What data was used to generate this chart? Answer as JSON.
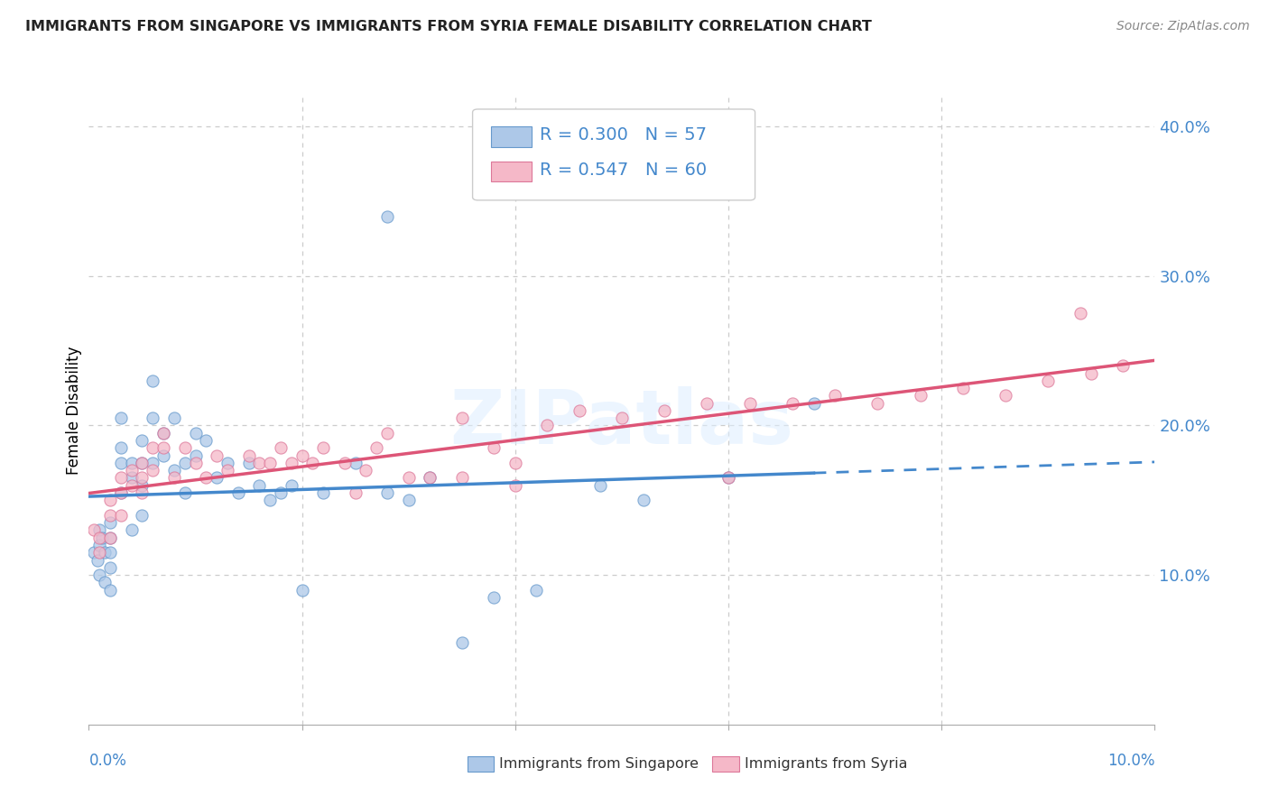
{
  "title": "IMMIGRANTS FROM SINGAPORE VS IMMIGRANTS FROM SYRIA FEMALE DISABILITY CORRELATION CHART",
  "source": "Source: ZipAtlas.com",
  "ylabel": "Female Disability",
  "watermark": "ZIPatlas",
  "xlim": [
    0.0,
    0.1
  ],
  "ylim": [
    0.0,
    0.42
  ],
  "singapore_color": "#adc8e8",
  "singapore_line_color": "#4488cc",
  "singapore_edge_color": "#6699cc",
  "syria_color": "#f5b8c8",
  "syria_line_color": "#dd5577",
  "syria_edge_color": "#dd7799",
  "singapore_R": 0.3,
  "singapore_N": 57,
  "syria_R": 0.547,
  "syria_N": 60,
  "singapore_x": [
    0.0005,
    0.0008,
    0.001,
    0.001,
    0.001,
    0.0012,
    0.0015,
    0.0015,
    0.002,
    0.002,
    0.002,
    0.002,
    0.002,
    0.003,
    0.003,
    0.003,
    0.003,
    0.004,
    0.004,
    0.004,
    0.005,
    0.005,
    0.005,
    0.005,
    0.006,
    0.006,
    0.006,
    0.007,
    0.007,
    0.008,
    0.008,
    0.009,
    0.009,
    0.01,
    0.01,
    0.011,
    0.012,
    0.013,
    0.014,
    0.015,
    0.016,
    0.017,
    0.018,
    0.019,
    0.02,
    0.022,
    0.025,
    0.028,
    0.03,
    0.032,
    0.035,
    0.038,
    0.042,
    0.048,
    0.052,
    0.06,
    0.068
  ],
  "singapore_y": [
    0.115,
    0.11,
    0.13,
    0.12,
    0.1,
    0.125,
    0.115,
    0.095,
    0.135,
    0.125,
    0.115,
    0.105,
    0.09,
    0.205,
    0.185,
    0.175,
    0.155,
    0.175,
    0.165,
    0.13,
    0.19,
    0.175,
    0.16,
    0.14,
    0.23,
    0.205,
    0.175,
    0.195,
    0.18,
    0.205,
    0.17,
    0.175,
    0.155,
    0.195,
    0.18,
    0.19,
    0.165,
    0.175,
    0.155,
    0.175,
    0.16,
    0.15,
    0.155,
    0.16,
    0.09,
    0.155,
    0.175,
    0.155,
    0.15,
    0.165,
    0.055,
    0.085,
    0.09,
    0.16,
    0.15,
    0.165,
    0.215
  ],
  "singapore_outlier_x": [
    0.028
  ],
  "singapore_outlier_y": [
    0.34
  ],
  "syria_x": [
    0.0005,
    0.001,
    0.001,
    0.002,
    0.002,
    0.002,
    0.003,
    0.003,
    0.003,
    0.004,
    0.004,
    0.005,
    0.005,
    0.005,
    0.006,
    0.006,
    0.007,
    0.007,
    0.008,
    0.009,
    0.01,
    0.011,
    0.012,
    0.013,
    0.015,
    0.016,
    0.017,
    0.018,
    0.019,
    0.02,
    0.021,
    0.022,
    0.024,
    0.026,
    0.027,
    0.028,
    0.03,
    0.032,
    0.035,
    0.038,
    0.04,
    0.043,
    0.046,
    0.05,
    0.054,
    0.058,
    0.062,
    0.066,
    0.07,
    0.074,
    0.078,
    0.082,
    0.086,
    0.09,
    0.094,
    0.097,
    0.04,
    0.025,
    0.035,
    0.06
  ],
  "syria_y": [
    0.13,
    0.125,
    0.115,
    0.15,
    0.14,
    0.125,
    0.165,
    0.155,
    0.14,
    0.17,
    0.16,
    0.175,
    0.165,
    0.155,
    0.185,
    0.17,
    0.195,
    0.185,
    0.165,
    0.185,
    0.175,
    0.165,
    0.18,
    0.17,
    0.18,
    0.175,
    0.175,
    0.185,
    0.175,
    0.18,
    0.175,
    0.185,
    0.175,
    0.17,
    0.185,
    0.195,
    0.165,
    0.165,
    0.205,
    0.185,
    0.175,
    0.2,
    0.21,
    0.205,
    0.21,
    0.215,
    0.215,
    0.215,
    0.22,
    0.215,
    0.22,
    0.225,
    0.22,
    0.23,
    0.235,
    0.24,
    0.16,
    0.155,
    0.165,
    0.165
  ],
  "syria_outlier_x": [
    0.093
  ],
  "syria_outlier_y": [
    0.275
  ]
}
